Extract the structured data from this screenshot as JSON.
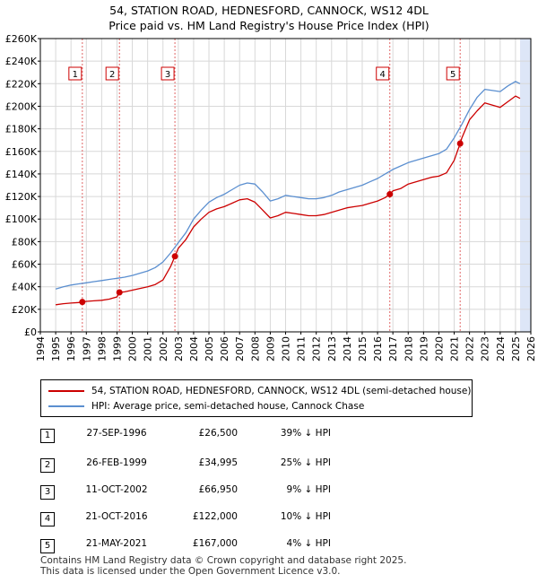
{
  "header": {
    "title_line1": "54, STATION ROAD, HEDNESFORD, CANNOCK, WS12 4DL",
    "title_line2": "Price paid vs. HM Land Registry's House Price Index (HPI)"
  },
  "chart_data": {
    "type": "line",
    "x_range": [
      1994,
      2026
    ],
    "x_ticks": [
      "1994",
      "1995",
      "1996",
      "1997",
      "1998",
      "1999",
      "2000",
      "2001",
      "2002",
      "2003",
      "2004",
      "2005",
      "2006",
      "2007",
      "2008",
      "2009",
      "2010",
      "2011",
      "2012",
      "2013",
      "2014",
      "2015",
      "2016",
      "2017",
      "2018",
      "2019",
      "2020",
      "2021",
      "2022",
      "2023",
      "2024",
      "2025",
      "2026"
    ],
    "ylim": [
      0,
      260000
    ],
    "y_ticks": [
      0,
      20000,
      40000,
      60000,
      80000,
      100000,
      120000,
      140000,
      160000,
      180000,
      200000,
      220000,
      240000,
      260000
    ],
    "y_tick_labels": [
      "£0",
      "£20K",
      "£40K",
      "£60K",
      "£80K",
      "£100K",
      "£120K",
      "£140K",
      "£160K",
      "£180K",
      "£200K",
      "£220K",
      "£240K",
      "£260K"
    ],
    "grid": true,
    "series": [
      {
        "name": "54, STATION ROAD, HEDNESFORD, CANNOCK, WS12 4DL (semi-detached house)",
        "color": "#cc0000",
        "x": [
          1995.0,
          1995.5,
          1996.0,
          1996.5,
          1996.74,
          1997.0,
          1997.5,
          1998.0,
          1998.5,
          1999.0,
          1999.16,
          1999.5,
          2000.0,
          2000.5,
          2001.0,
          2001.5,
          2002.0,
          2002.5,
          2002.78,
          2003.0,
          2003.5,
          2004.0,
          2004.5,
          2005.0,
          2005.5,
          2006.0,
          2006.5,
          2007.0,
          2007.5,
          2008.0,
          2008.5,
          2009.0,
          2009.5,
          2010.0,
          2010.5,
          2011.0,
          2011.5,
          2012.0,
          2012.5,
          2013.0,
          2013.5,
          2014.0,
          2014.5,
          2015.0,
          2015.5,
          2016.0,
          2016.5,
          2016.8,
          2017.0,
          2017.5,
          2018.0,
          2018.5,
          2019.0,
          2019.5,
          2020.0,
          2020.5,
          2021.0,
          2021.39,
          2021.5,
          2022.0,
          2022.5,
          2023.0,
          2023.5,
          2024.0,
          2024.5,
          2025.0,
          2025.3
        ],
        "y": [
          24000,
          25000,
          25500,
          26000,
          26500,
          27000,
          27500,
          28000,
          29000,
          31000,
          34995,
          35500,
          37000,
          38500,
          40000,
          42000,
          46000,
          58000,
          66950,
          74000,
          82000,
          93000,
          100000,
          106000,
          109000,
          111000,
          114000,
          117000,
          118000,
          115000,
          108000,
          101000,
          103000,
          106000,
          105000,
          104000,
          103000,
          103000,
          104000,
          106000,
          108000,
          110000,
          111000,
          112000,
          114000,
          116000,
          119000,
          122000,
          125000,
          127000,
          131000,
          133000,
          135000,
          137000,
          138000,
          141000,
          152000,
          167000,
          172000,
          188000,
          196000,
          203000,
          201000,
          199000,
          204000,
          209000,
          207000
        ]
      },
      {
        "name": "HPI: Average price, semi-detached house, Cannock Chase",
        "color": "#5b8fd0",
        "x": [
          1995.0,
          1995.5,
          1996.0,
          1996.5,
          1997.0,
          1997.5,
          1998.0,
          1998.5,
          1999.0,
          1999.5,
          2000.0,
          2000.5,
          2001.0,
          2001.5,
          2002.0,
          2002.5,
          2003.0,
          2003.5,
          2004.0,
          2004.5,
          2005.0,
          2005.5,
          2006.0,
          2006.5,
          2007.0,
          2007.5,
          2008.0,
          2008.5,
          2009.0,
          2009.5,
          2010.0,
          2010.5,
          2011.0,
          2011.5,
          2012.0,
          2012.5,
          2013.0,
          2013.5,
          2014.0,
          2014.5,
          2015.0,
          2015.5,
          2016.0,
          2016.5,
          2017.0,
          2017.5,
          2018.0,
          2018.5,
          2019.0,
          2019.5,
          2020.0,
          2020.5,
          2021.0,
          2021.5,
          2022.0,
          2022.5,
          2023.0,
          2023.5,
          2024.0,
          2024.5,
          2025.0,
          2025.3
        ],
        "y": [
          38000,
          40000,
          41500,
          42500,
          43500,
          44500,
          45500,
          46500,
          47500,
          48500,
          50000,
          52000,
          54000,
          57000,
          62000,
          70000,
          79000,
          88000,
          100000,
          108000,
          115000,
          119000,
          122000,
          126000,
          130000,
          132000,
          131000,
          124000,
          116000,
          118000,
          121000,
          120000,
          119000,
          118000,
          118000,
          119000,
          121000,
          124000,
          126000,
          128000,
          130000,
          133000,
          136000,
          140000,
          144000,
          147000,
          150000,
          152000,
          154000,
          156000,
          158000,
          162000,
          172000,
          184000,
          197000,
          208000,
          215000,
          214000,
          213000,
          218000,
          222000,
          220000
        ]
      }
    ],
    "sales": [
      {
        "label": "1",
        "x": 1996.74,
        "y": 26500
      },
      {
        "label": "2",
        "x": 1999.16,
        "y": 34995
      },
      {
        "label": "3",
        "x": 2002.78,
        "y": 66950
      },
      {
        "label": "4",
        "x": 2016.8,
        "y": 122000
      },
      {
        "label": "5",
        "x": 2021.39,
        "y": 167000
      }
    ],
    "colors": {
      "shade": "#dde6f7",
      "grid": "#d8d8d8",
      "marker_line": "#e06666"
    }
  },
  "legend": {
    "property_label": "54, STATION ROAD, HEDNESFORD, CANNOCK, WS12 4DL (semi-detached house)",
    "hpi_label": "HPI: Average price, semi-detached house, Cannock Chase"
  },
  "transactions": [
    {
      "num": "1",
      "date": "27-SEP-1996",
      "price": "£26,500",
      "hpi": "39% ↓ HPI"
    },
    {
      "num": "2",
      "date": "26-FEB-1999",
      "price": "£34,995",
      "hpi": "25% ↓ HPI"
    },
    {
      "num": "3",
      "date": "11-OCT-2002",
      "price": "£66,950",
      "hpi": "9% ↓ HPI"
    },
    {
      "num": "4",
      "date": "21-OCT-2016",
      "price": "£122,000",
      "hpi": "10% ↓ HPI"
    },
    {
      "num": "5",
      "date": "21-MAY-2021",
      "price": "£167,000",
      "hpi": "4% ↓ HPI"
    }
  ],
  "footer": {
    "line1": "Contains HM Land Registry data © Crown copyright and database right 2025.",
    "line2": "This data is licensed under the Open Government Licence v3.0."
  }
}
